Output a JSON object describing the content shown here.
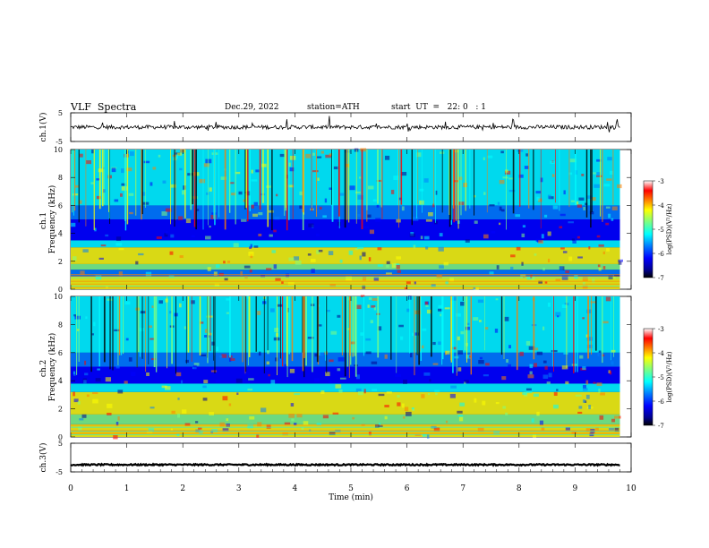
{
  "header": {
    "title": "VLF  Spectra",
    "date": "Dec.29, 2022",
    "station": "station=ATH",
    "start": "start  UT  =   22: 0   : 1"
  },
  "colors": {
    "colormap": [
      "#000000",
      "#00008f",
      "#0000ff",
      "#007fff",
      "#00ffff",
      "#7fff7f",
      "#ffff00",
      "#ff7f00",
      "#ff0000",
      "#ffffff"
    ],
    "trace": "#000000",
    "spectrogram_background": "#00008f"
  },
  "chart_data": [
    {
      "type": "line",
      "name": "ch1-waveform",
      "ylabel": "ch.1(V)",
      "ylim": [
        -5,
        5
      ],
      "yticks": [
        "5",
        "-5"
      ],
      "xlim": [
        0,
        10
      ],
      "baseline": 0,
      "description_values": {
        "typical_range": [
          -1,
          1
        ],
        "spike_max": 3
      }
    },
    {
      "type": "heatmap",
      "name": "ch1-spectrogram",
      "ylabel": "ch.1\nFrequency (kHz)",
      "ylim": [
        0,
        10
      ],
      "yticks": [
        "0",
        "2",
        "4",
        "6",
        "8",
        "10"
      ],
      "xlim": [
        0,
        9.8
      ],
      "colorbar": {
        "label": "log(PSD)(V²/Hz)",
        "range": [
          -7,
          -3
        ],
        "ticks": [
          "-3",
          "-4",
          "-5",
          "-6",
          "-7"
        ]
      },
      "bands": [
        {
          "f": [
            0,
            0.9
          ],
          "level": -4.3
        },
        {
          "f": [
            0.9,
            1.4
          ],
          "level": -5.6
        },
        {
          "f": [
            1.4,
            1.8
          ],
          "level": -4.9
        },
        {
          "f": [
            1.8,
            3.0
          ],
          "level": -4.2
        },
        {
          "f": [
            3.0,
            3.5
          ],
          "level": -5.2
        },
        {
          "f": [
            3.5,
            5.0
          ],
          "level": -6.5
        },
        {
          "f": [
            5.0,
            6.0
          ],
          "level": -5.8
        },
        {
          "f": [
            6.0,
            10.0
          ],
          "level": -5.5
        }
      ]
    },
    {
      "type": "heatmap",
      "name": "ch2-spectrogram",
      "ylabel": "ch.2\nFrequency (kHz)",
      "ylim": [
        0,
        10
      ],
      "yticks": [
        "0",
        "2",
        "4",
        "6",
        "8",
        "10"
      ],
      "xlim": [
        0,
        9.8
      ],
      "colorbar": {
        "label": "log(PSD)(V²/Hz)",
        "range": [
          -7,
          -3
        ],
        "ticks": [
          "-3",
          "-4",
          "-5",
          "-6",
          "-7"
        ]
      },
      "bands": [
        {
          "f": [
            0,
            0.9
          ],
          "level": -4.4
        },
        {
          "f": [
            0.9,
            1.6
          ],
          "level": -5.0
        },
        {
          "f": [
            1.6,
            3.2
          ],
          "level": -4.3
        },
        {
          "f": [
            3.2,
            3.8
          ],
          "level": -5.3
        },
        {
          "f": [
            3.8,
            5.0
          ],
          "level": -6.3
        },
        {
          "f": [
            5.0,
            6.0
          ],
          "level": -5.8
        },
        {
          "f": [
            6.0,
            10.0
          ],
          "level": -5.5
        }
      ]
    },
    {
      "type": "line",
      "name": "ch3-waveform",
      "ylabel": "ch.3(V)",
      "ylim": [
        -5,
        5
      ],
      "yticks": [
        "5",
        "-5"
      ],
      "xlim": [
        0,
        10
      ],
      "baseline": -2.5,
      "description_values": {
        "typical_range": [
          -2.7,
          -2.3
        ]
      }
    }
  ],
  "xaxis": {
    "label": "Time  (min)",
    "ticks": [
      "0",
      "1",
      "2",
      "3",
      "4",
      "5",
      "6",
      "7",
      "8",
      "9",
      "10"
    ],
    "range": [
      0,
      10
    ]
  }
}
